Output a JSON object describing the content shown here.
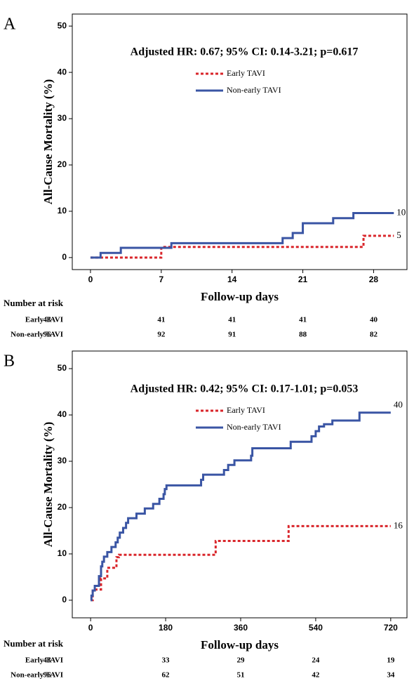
{
  "chart_data": [
    {
      "type": "step",
      "panel_label": "A",
      "annotation": "Adjusted HR: 0.67; 95% CI: 0.14-3.21; p=0.617",
      "y_label": "All-Cause Mortality (%)",
      "x_label": "Follow-up days",
      "xlim": [
        -1.8,
        31.3
      ],
      "xticks": [
        0,
        7,
        14,
        21,
        28
      ],
      "ylim": [
        -2.6,
        52.6
      ],
      "yticks": [
        0,
        10,
        20,
        30,
        40,
        50
      ],
      "grid": false,
      "legend": "top",
      "series": [
        {
          "name": "Early TAVI",
          "color": "#d9262b",
          "dash": true,
          "x": [
            0,
            7,
            27,
            30
          ],
          "values": [
            0,
            2.3,
            4.7,
            4.7
          ],
          "end_label": "5"
        },
        {
          "name": "Non-early TAVI",
          "color": "#3a55a4",
          "dash": false,
          "x": [
            0,
            1,
            3,
            8,
            19,
            20,
            21,
            24,
            26,
            30
          ],
          "values": [
            0,
            1.0,
            2.1,
            3.1,
            4.2,
            5.3,
            7.4,
            8.5,
            9.6,
            9.6
          ],
          "end_label": "10"
        }
      ],
      "risk_table": {
        "title": "Number at risk",
        "rows": [
          {
            "name": "Early TAVI",
            "color": "#c8102e",
            "values": [
              43,
              41,
              41,
              41,
              40
            ]
          },
          {
            "name": "Non-early TAVI",
            "color": "#1f3a7a",
            "values": [
              96,
              92,
              91,
              88,
              82
            ]
          }
        ]
      }
    },
    {
      "type": "step",
      "panel_label": "B",
      "annotation": "Adjusted HR: 0.42; 95% CI: 0.17-1.01; p=0.053",
      "y_label": "All-Cause Mortality (%)",
      "x_label": "Follow-up days",
      "xlim": [
        -44,
        759
      ],
      "xticks": [
        0,
        180,
        360,
        540,
        720
      ],
      "ylim": [
        -3.8,
        53.8
      ],
      "yticks": [
        0,
        10,
        20,
        30,
        40,
        50
      ],
      "grid": false,
      "legend": "top",
      "series": [
        {
          "name": "Early TAVI",
          "color": "#d9262b",
          "dash": true,
          "x": [
            0,
            5,
            25,
            40,
            62,
            68,
            300,
            475,
            720
          ],
          "values": [
            0,
            2.3,
            4.7,
            7.0,
            9.3,
            9.8,
            12.8,
            16.0,
            16.0
          ],
          "end_label": "16"
        },
        {
          "name": "Non-early TAVI",
          "color": "#3a55a4",
          "dash": false,
          "x": [
            0,
            2,
            5,
            10,
            20,
            25,
            28,
            32,
            40,
            50,
            60,
            65,
            70,
            78,
            85,
            90,
            110,
            130,
            150,
            165,
            175,
            178,
            182,
            265,
            270,
            320,
            330,
            345,
            385,
            388,
            480,
            530,
            540,
            548,
            560,
            580,
            645,
            720
          ],
          "values": [
            0,
            1.0,
            2.1,
            3.1,
            5.2,
            7.3,
            8.3,
            9.4,
            10.4,
            11.5,
            12.5,
            13.5,
            14.6,
            15.6,
            16.7,
            17.7,
            18.7,
            19.8,
            20.8,
            21.9,
            22.9,
            24.0,
            24.8,
            26.0,
            27.1,
            28.1,
            29.2,
            30.2,
            31.2,
            32.8,
            34.2,
            35.4,
            36.5,
            37.5,
            38.0,
            38.8,
            40.5,
            40.5
          ],
          "end_label": "40"
        }
      ],
      "risk_table": {
        "title": "Number at risk",
        "rows": [
          {
            "name": "Early TAVI",
            "color": "#c8102e",
            "values": [
              43,
              33,
              29,
              24,
              19
            ]
          },
          {
            "name": "Non-early TAVI",
            "color": "#1f3a7a",
            "values": [
              96,
              62,
              51,
              42,
              34
            ]
          }
        ]
      }
    }
  ]
}
